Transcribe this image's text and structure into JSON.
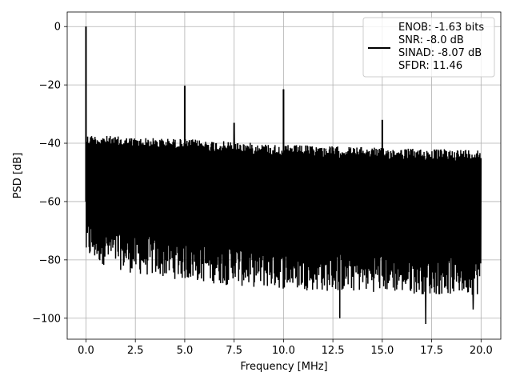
{
  "chart_data": {
    "type": "line",
    "title": "",
    "xlabel": "Frequency [MHz]",
    "ylabel": "PSD [dB]",
    "xlim": [
      -0.95,
      21.0
    ],
    "ylim": [
      -107.2,
      5.0
    ],
    "xticks": [
      0.0,
      2.5,
      5.0,
      7.5,
      10.0,
      12.5,
      15.0,
      17.5,
      20.0
    ],
    "xtick_labels": [
      "0.0",
      "2.5",
      "5.0",
      "7.5",
      "10.0",
      "12.5",
      "15.0",
      "17.5",
      "20.0"
    ],
    "yticks": [
      0,
      -20,
      -40,
      -60,
      -80,
      -100
    ],
    "ytick_labels": [
      "0",
      "−20",
      "−40",
      "−60",
      "−80",
      "−100"
    ],
    "grid": true,
    "legend_placement": "upper-right",
    "legend_lines": [
      "ENOB: -1.63 bits",
      "SNR: -8.0 dB",
      "SINAD: -8.07 dB",
      "SFDR: 11.46"
    ],
    "series": [
      {
        "color": "#000000",
        "noise_floor": {
          "x": [
            0.0,
            2.5,
            5.0,
            7.5,
            10.0,
            12.5,
            15.0,
            17.5,
            20.0
          ],
          "upper_envelope_db": [
            -37,
            -38,
            -38.5,
            -39.5,
            -40.5,
            -41,
            -41.5,
            -42,
            -42
          ],
          "lower_envelope_db": [
            -76,
            -81,
            -83,
            -85,
            -86,
            -87,
            -87,
            -88,
            -88
          ]
        },
        "spurs": [
          {
            "x": 0.0,
            "y": 0.0
          },
          {
            "x": 5.0,
            "y": -20.3
          },
          {
            "x": 7.5,
            "y": -33.0
          },
          {
            "x": 10.0,
            "y": -21.5
          },
          {
            "x": 15.0,
            "y": -32.0
          }
        ],
        "dips": [
          {
            "x": 12.85,
            "y": -100.0
          },
          {
            "x": 17.2,
            "y": -102.0
          },
          {
            "x": 19.6,
            "y": -97.0
          }
        ]
      }
    ]
  }
}
